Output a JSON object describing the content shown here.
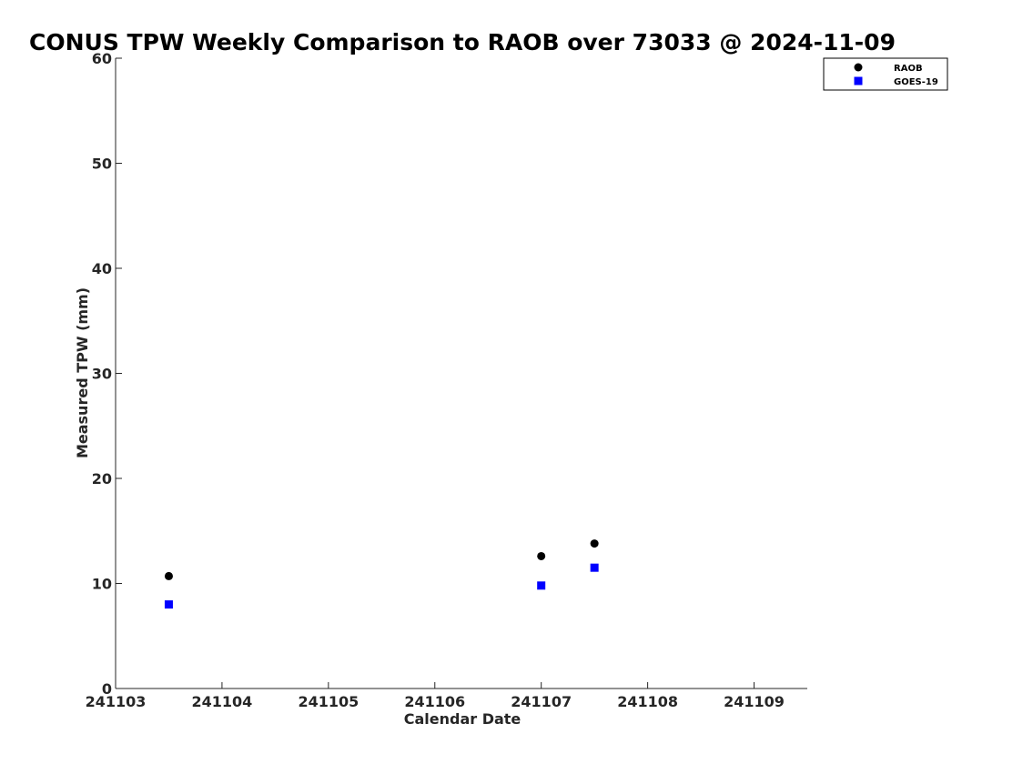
{
  "chart_data": {
    "type": "scatter",
    "title": "CONUS TPW Weekly Comparison to RAOB over 73033 @ 2024-11-09",
    "xlabel": "Calendar Date",
    "ylabel": "Measured TPW (mm)",
    "xlim": [
      0,
      6.5
    ],
    "ylim": [
      0,
      60
    ],
    "x_ticks": [
      0,
      1,
      2,
      3,
      4,
      5,
      6
    ],
    "x_tick_labels": [
      "241103",
      "241104",
      "241105",
      "241106",
      "241107",
      "241108",
      "241109"
    ],
    "y_ticks": [
      0,
      10,
      20,
      30,
      40,
      50,
      60
    ],
    "y_tick_labels": [
      "0",
      "10",
      "20",
      "30",
      "40",
      "50",
      "60"
    ],
    "grid": false,
    "legend_position": "top-right",
    "series": [
      {
        "name": "RAOB",
        "marker": "circle",
        "color": "#000000",
        "x": [
          0.5,
          4.0,
          4.5
        ],
        "y": [
          10.7,
          12.6,
          13.8
        ]
      },
      {
        "name": "GOES-19",
        "marker": "square",
        "color": "#0000ff",
        "x": [
          0.5,
          4.0,
          4.5
        ],
        "y": [
          8.0,
          9.8,
          11.5
        ]
      }
    ]
  }
}
